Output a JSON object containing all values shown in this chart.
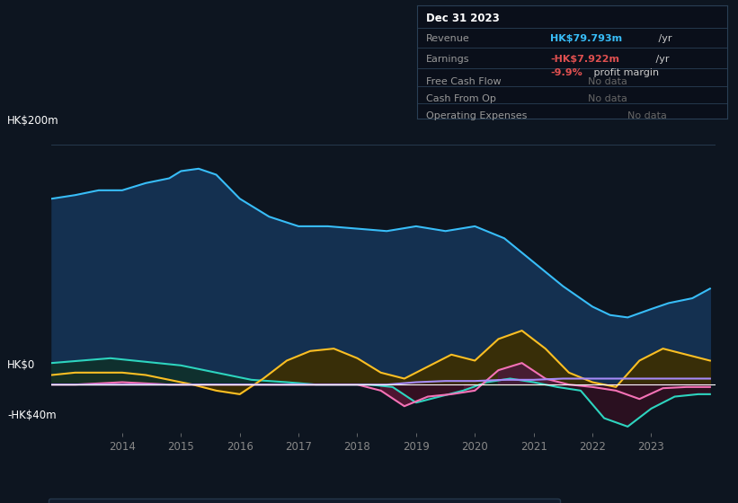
{
  "bg_color": "#0d1520",
  "plot_bg_color": "#0d1520",
  "ylim": [
    -40,
    220
  ],
  "xlabel_years": [
    "2014",
    "2015",
    "2016",
    "2017",
    "2018",
    "2019",
    "2020",
    "2021",
    "2022",
    "2023"
  ],
  "revenue_color": "#38bdf8",
  "earnings_color": "#2dd4bf",
  "fcf_color": "#f472b6",
  "cashop_color": "#fbbf24",
  "opex_color": "#a78bfa",
  "revenue_x": [
    2012.8,
    2013.2,
    2013.6,
    2014.0,
    2014.4,
    2014.8,
    2015.0,
    2015.3,
    2015.6,
    2016.0,
    2016.5,
    2017.0,
    2017.5,
    2018.0,
    2018.5,
    2019.0,
    2019.5,
    2020.0,
    2020.5,
    2021.0,
    2021.5,
    2022.0,
    2022.3,
    2022.6,
    2023.0,
    2023.3,
    2023.7,
    2024.0
  ],
  "revenue_y": [
    155,
    158,
    162,
    162,
    168,
    172,
    178,
    180,
    175,
    155,
    140,
    132,
    132,
    130,
    128,
    132,
    128,
    132,
    122,
    102,
    82,
    65,
    58,
    56,
    63,
    68,
    72,
    80
  ],
  "earnings_x": [
    2012.8,
    2013.3,
    2013.8,
    2014.2,
    2014.6,
    2015.0,
    2015.4,
    2015.8,
    2016.2,
    2016.8,
    2017.3,
    2017.8,
    2018.2,
    2018.6,
    2019.0,
    2019.4,
    2019.8,
    2020.2,
    2020.6,
    2021.0,
    2021.4,
    2021.8,
    2022.2,
    2022.6,
    2023.0,
    2023.4,
    2023.8,
    2024.0
  ],
  "earnings_y": [
    18,
    20,
    22,
    20,
    18,
    16,
    12,
    8,
    4,
    2,
    0,
    0,
    0,
    -2,
    -15,
    -10,
    -5,
    2,
    5,
    2,
    -2,
    -5,
    -28,
    -35,
    -20,
    -10,
    -8,
    -8
  ],
  "cashop_x": [
    2012.8,
    2013.2,
    2013.6,
    2014.0,
    2014.4,
    2014.8,
    2015.2,
    2015.6,
    2016.0,
    2016.4,
    2016.8,
    2017.2,
    2017.6,
    2018.0,
    2018.4,
    2018.8,
    2019.2,
    2019.6,
    2020.0,
    2020.4,
    2020.8,
    2021.2,
    2021.6,
    2022.0,
    2022.4,
    2022.8,
    2023.2,
    2023.6,
    2024.0
  ],
  "cashop_y": [
    8,
    10,
    10,
    10,
    8,
    4,
    0,
    -5,
    -8,
    5,
    20,
    28,
    30,
    22,
    10,
    5,
    15,
    25,
    20,
    38,
    45,
    30,
    10,
    2,
    -2,
    20,
    30,
    25,
    20
  ],
  "fcf_x": [
    2012.8,
    2013.2,
    2013.6,
    2014.0,
    2014.4,
    2014.8,
    2015.2,
    2015.6,
    2016.0,
    2016.4,
    2016.8,
    2017.2,
    2017.6,
    2018.0,
    2018.4,
    2018.8,
    2019.2,
    2019.6,
    2020.0,
    2020.4,
    2020.8,
    2021.2,
    2021.6,
    2022.0,
    2022.4,
    2022.8,
    2023.2,
    2023.6,
    2024.0
  ],
  "fcf_y": [
    0,
    0,
    1,
    2,
    1,
    0,
    0,
    0,
    0,
    0,
    0,
    0,
    0,
    0,
    -5,
    -18,
    -10,
    -8,
    -5,
    12,
    18,
    5,
    0,
    -2,
    -5,
    -12,
    -3,
    -2,
    -2
  ],
  "opex_x": [
    2012.8,
    2013.5,
    2014.0,
    2015.0,
    2016.0,
    2017.0,
    2018.5,
    2019.0,
    2019.5,
    2020.0,
    2020.5,
    2021.0,
    2021.5,
    2022.0,
    2022.5,
    2023.0,
    2023.5,
    2024.0
  ],
  "opex_y": [
    0,
    0,
    0,
    0,
    0,
    0,
    0,
    2,
    3,
    3,
    4,
    4,
    5,
    5,
    5,
    5,
    5,
    5
  ],
  "legend_items": [
    {
      "label": "Revenue",
      "color": "#38bdf8"
    },
    {
      "label": "Earnings",
      "color": "#2dd4bf"
    },
    {
      "label": "Free Cash Flow",
      "color": "#f472b6"
    },
    {
      "label": "Cash From Op",
      "color": "#fbbf24"
    },
    {
      "label": "Operating Expenses",
      "color": "#a78bfa"
    }
  ]
}
